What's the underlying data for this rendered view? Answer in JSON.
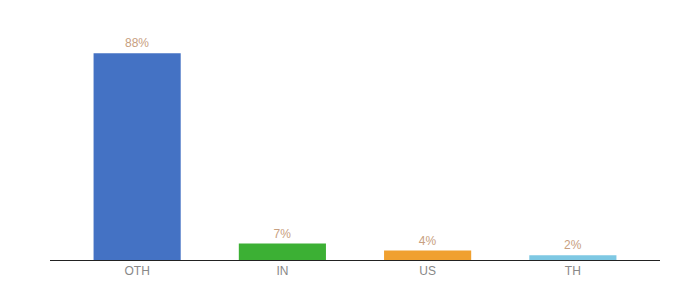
{
  "chart_data": {
    "type": "bar",
    "categories": [
      "OTH",
      "IN",
      "US",
      "TH"
    ],
    "values": [
      88,
      7,
      4,
      2
    ],
    "value_labels": [
      "88%",
      "7%",
      "4%",
      "2%"
    ],
    "colors": [
      "#4472c4",
      "#3cb034",
      "#f0a030",
      "#7ec8e3"
    ],
    "ylim": [
      0,
      100
    ],
    "data_labels": true,
    "tick_labels": "x",
    "grid": false
  }
}
